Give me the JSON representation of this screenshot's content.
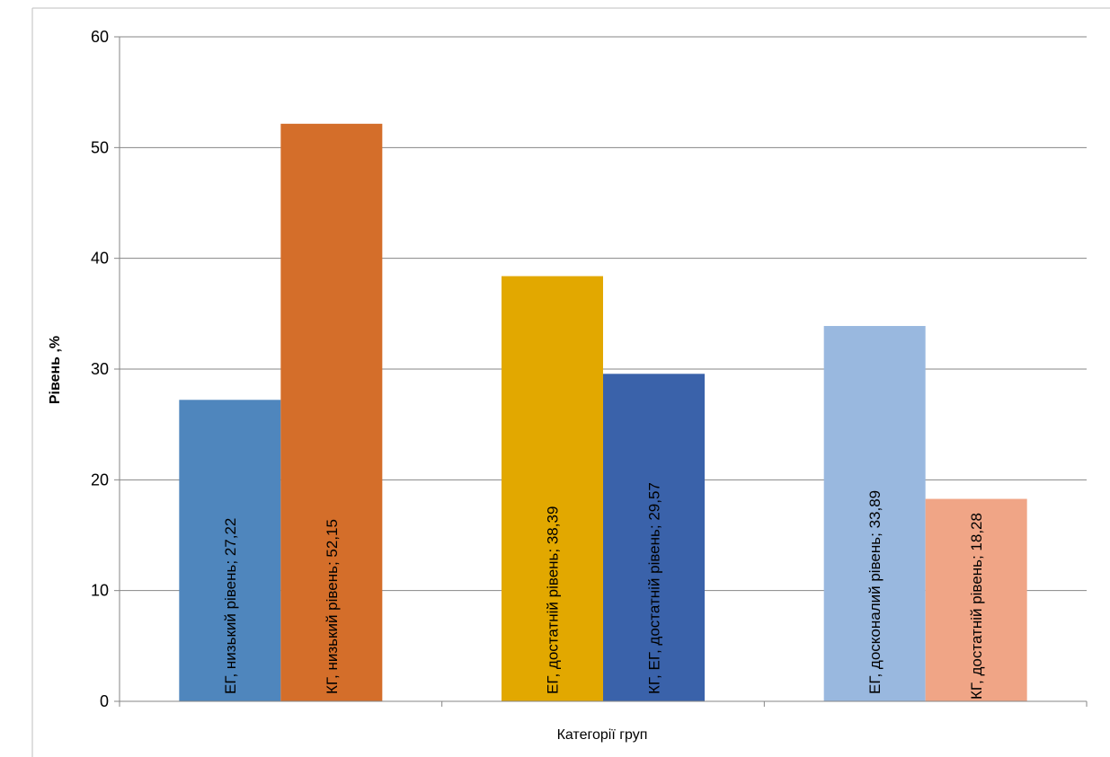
{
  "chart_data": {
    "type": "bar",
    "xlabel": "Категорії груп",
    "ylabel": "Рівень ,%",
    "ylim": [
      0,
      60
    ],
    "yticks": [
      0,
      10,
      20,
      30,
      40,
      50,
      60
    ],
    "grid": true,
    "legend": "none",
    "bars": [
      {
        "label": "ЕГ, низький рівень; 27,22",
        "value": 27.22,
        "group": 0,
        "color": "#4f86bd"
      },
      {
        "label": "КГ, низький рівень; 52,15",
        "value": 52.15,
        "group": 0,
        "color": "#d46e2a"
      },
      {
        "label": "ЕГ, достатній рівень; 38,39",
        "value": 38.39,
        "group": 1,
        "color": "#e2a800"
      },
      {
        "label": "КГ, ЕГ, достатній рівень; 29,57",
        "value": 29.57,
        "group": 1,
        "color": "#3a62aa"
      },
      {
        "label": "ЕГ, досконалий рівень; 33,89",
        "value": 33.89,
        "group": 2,
        "color": "#99b8df"
      },
      {
        "label": "КГ, достатній рівень; 18,28",
        "value": 18.28,
        "group": 2,
        "color": "#f0a586"
      }
    ]
  }
}
